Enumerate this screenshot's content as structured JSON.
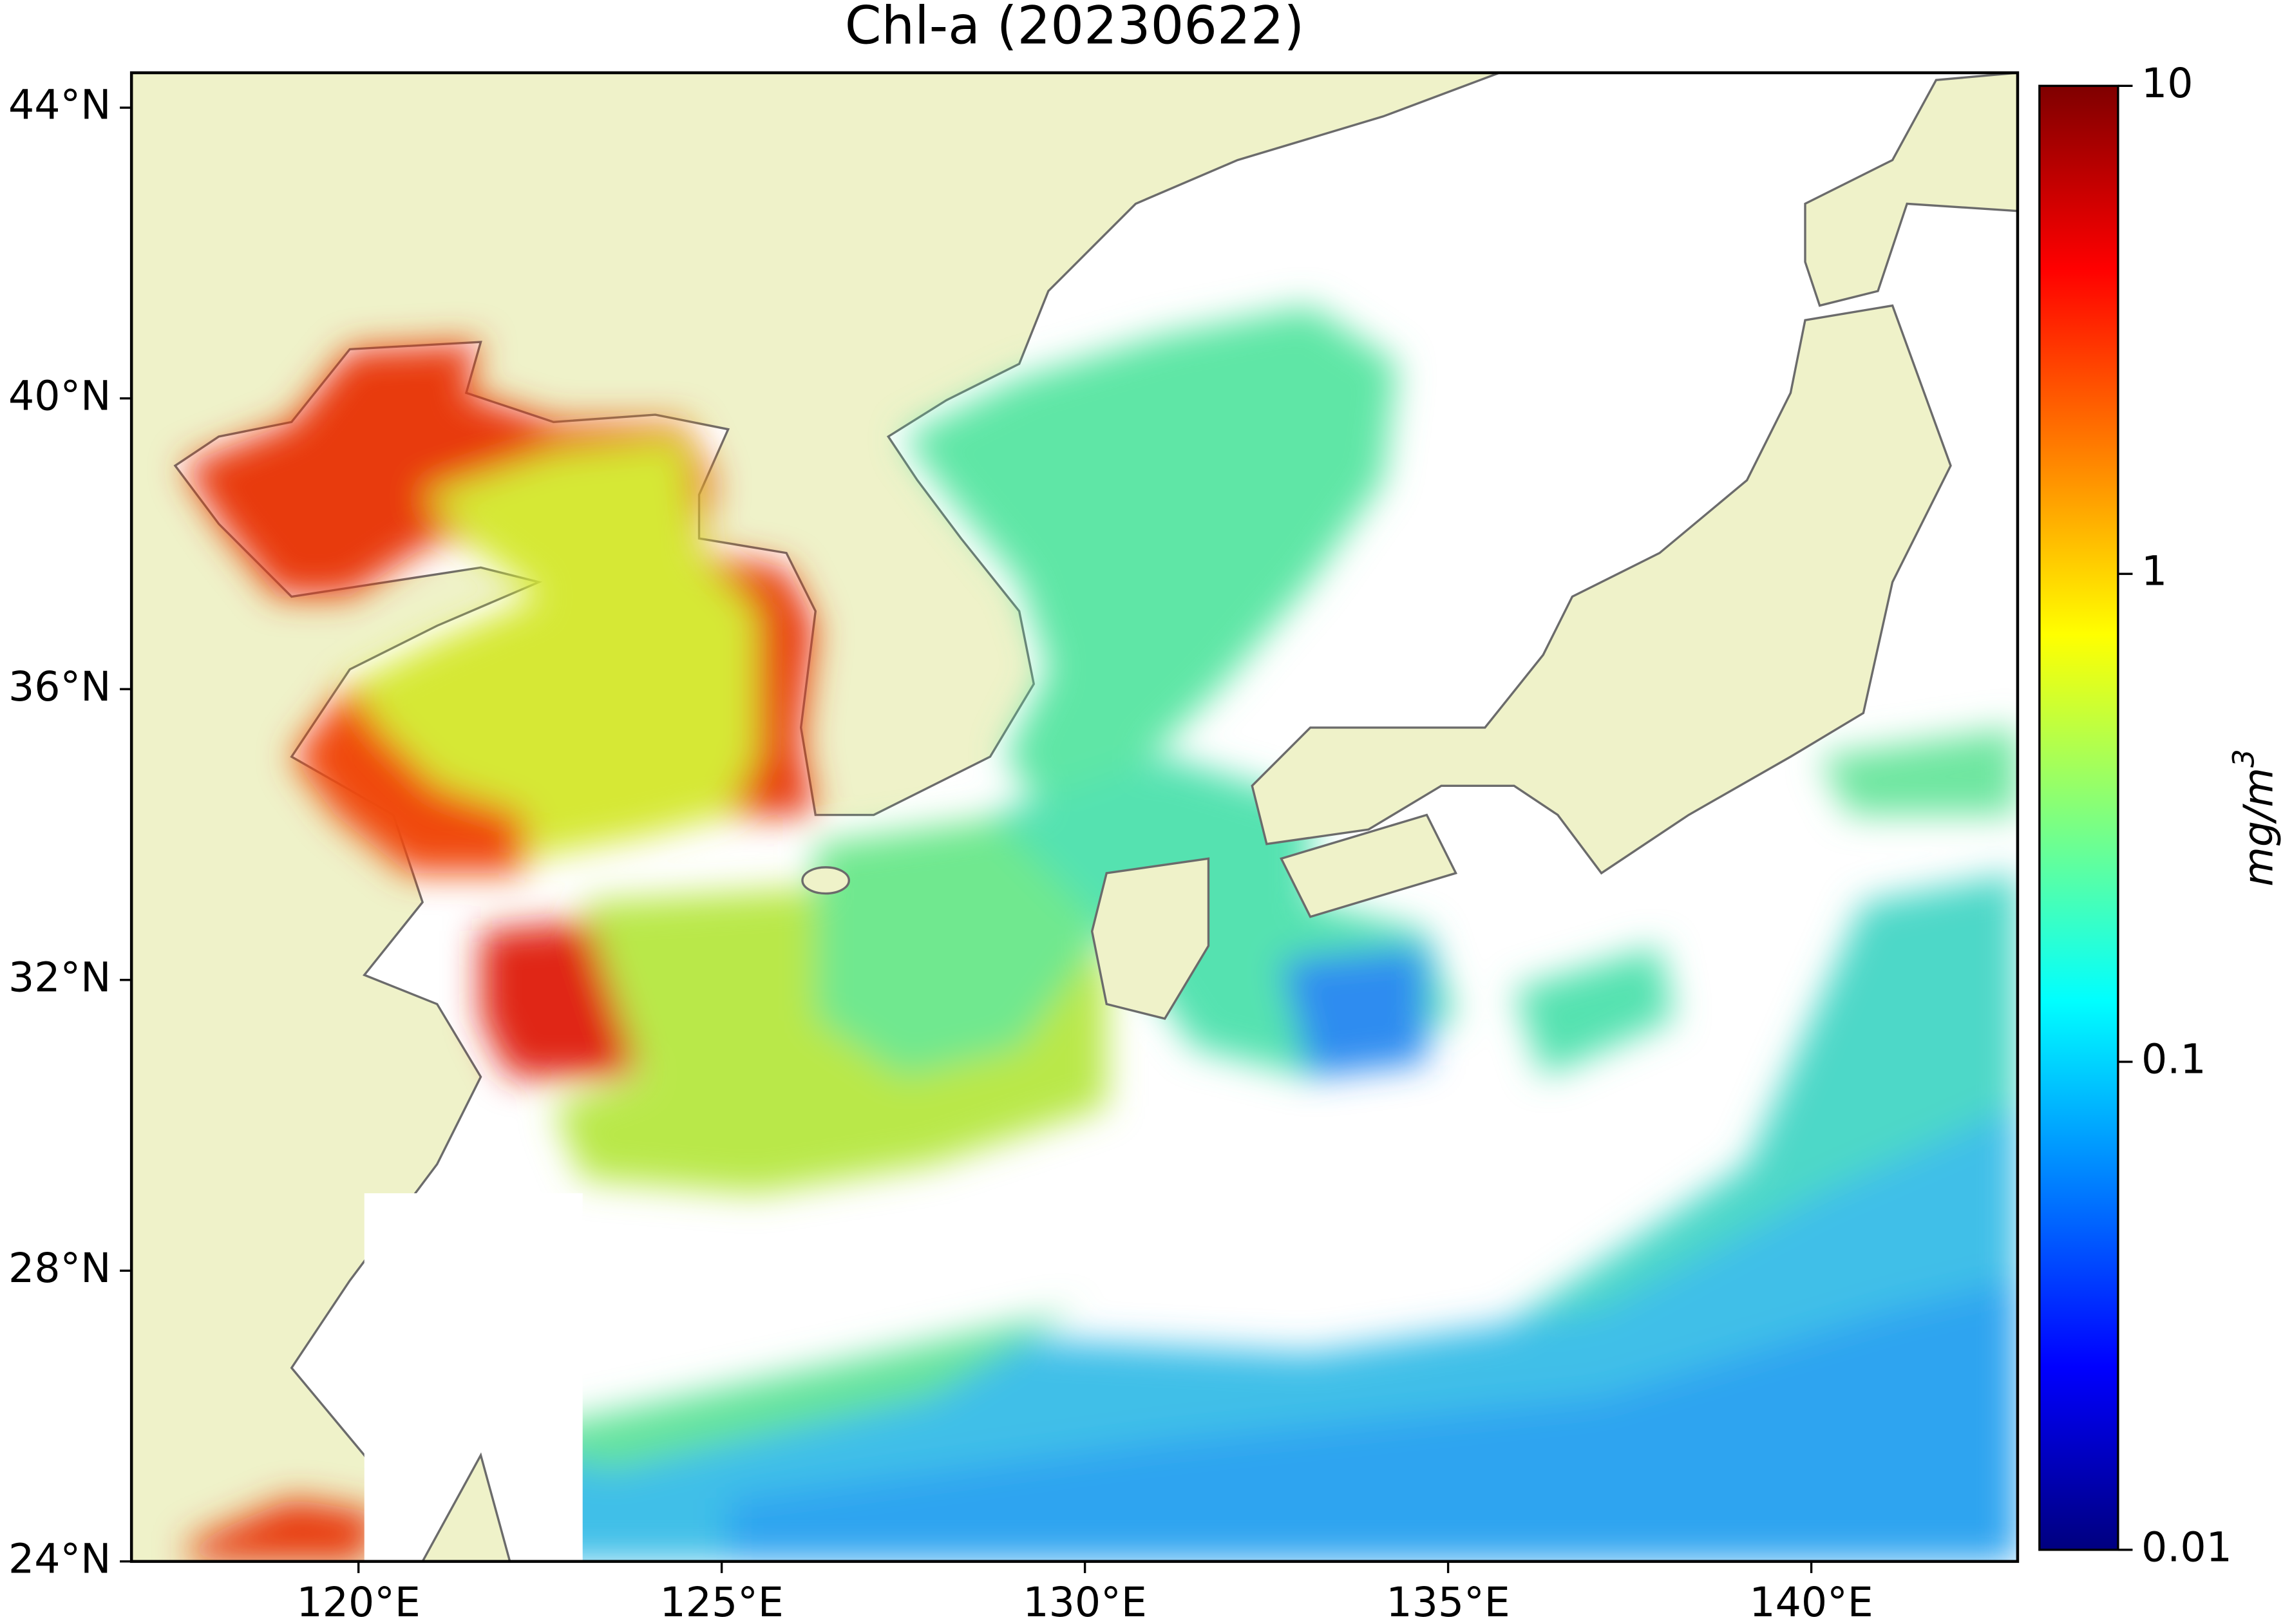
{
  "chart_data": {
    "type": "map",
    "title": "Chl-a (20230622)",
    "xlim": [
      116.875,
      142.84
    ],
    "ylim": [
      24,
      44.48
    ],
    "xticks": [
      {
        "value": 120,
        "label": "120°E"
      },
      {
        "value": 125,
        "label": "125°E"
      },
      {
        "value": 130,
        "label": "130°E"
      },
      {
        "value": 135,
        "label": "135°E"
      },
      {
        "value": 140,
        "label": "140°E"
      }
    ],
    "yticks": [
      {
        "value": 24,
        "label": "24°N"
      },
      {
        "value": 28,
        "label": "28°N"
      },
      {
        "value": 32,
        "label": "32°N"
      },
      {
        "value": 36,
        "label": "36°N"
      },
      {
        "value": 40,
        "label": "40°N"
      },
      {
        "value": 44,
        "label": "44°N"
      }
    ],
    "colorbar": {
      "scale": "log",
      "lim": [
        0.01,
        10
      ],
      "ticks": [
        0.01,
        0.1,
        1,
        10
      ],
      "unit": "mg/m",
      "unit_exponent": "3",
      "colormap": [
        "#00007f",
        "#0000ff",
        "#007fff",
        "#00ffff",
        "#7fff7f",
        "#ffff00",
        "#ff7f00",
        "#ff0000",
        "#7f0000"
      ]
    }
  }
}
